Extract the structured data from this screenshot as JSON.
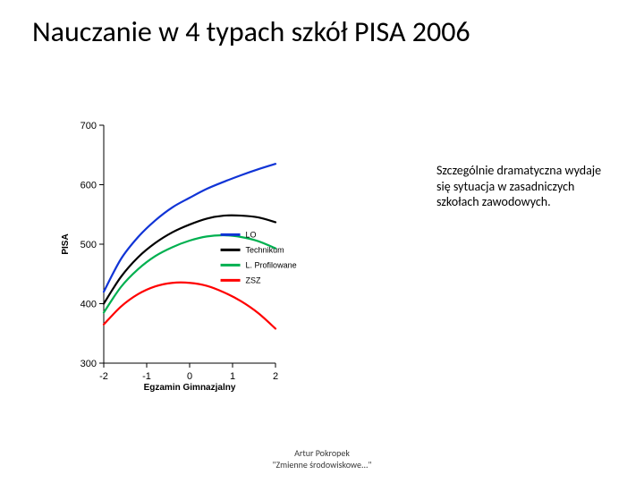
{
  "title": "Nauczanie w 4 typach szkół  PISA 2006",
  "note": "Szczególnie dramatyczna wydaje się sytuacja w zasadniczych szkołach zawodowych.",
  "footer_line1": "Artur Pokropek",
  "footer_line2": "\"Zmienne środowiskowe...\"",
  "chart": {
    "type": "line",
    "background_color": "#ffffff",
    "axis_color": "#000000",
    "xlabel": "Egzamin Gimnazjalny",
    "ylabel": "PISA",
    "label_fontsize": 10,
    "tick_fontsize": 11,
    "xlim": [
      -2,
      2
    ],
    "ylim": [
      300,
      700
    ],
    "xticks": [
      -2,
      -1,
      0,
      1,
      2
    ],
    "yticks": [
      300,
      400,
      500,
      600,
      700
    ],
    "tick_len": 5,
    "line_width": 2.2,
    "legend": {
      "x": 0.68,
      "y_top": 0.46,
      "swatch_width": 22,
      "fontsize": 9,
      "items": [
        {
          "label": "LO",
          "color": "#1034d6"
        },
        {
          "label": "Technikum",
          "color": "#000000"
        },
        {
          "label": "L. Profilowane",
          "color": "#00b050"
        },
        {
          "label": "ZSZ",
          "color": "#ff0000"
        }
      ]
    },
    "series": [
      {
        "name": "LO",
        "color": "#1034d6",
        "points": [
          [
            -2,
            420
          ],
          [
            -1.6,
            475
          ],
          [
            -1.2,
            512
          ],
          [
            -0.8,
            540
          ],
          [
            -0.4,
            562
          ],
          [
            0,
            578
          ],
          [
            0.4,
            593
          ],
          [
            0.8,
            605
          ],
          [
            1.2,
            616
          ],
          [
            1.6,
            626
          ],
          [
            2,
            635
          ]
        ]
      },
      {
        "name": "Technikum",
        "color": "#000000",
        "points": [
          [
            -2,
            400
          ],
          [
            -1.6,
            445
          ],
          [
            -1.2,
            478
          ],
          [
            -0.8,
            502
          ],
          [
            -0.4,
            520
          ],
          [
            0,
            533
          ],
          [
            0.4,
            543
          ],
          [
            0.8,
            548
          ],
          [
            1.2,
            548
          ],
          [
            1.6,
            545
          ],
          [
            2,
            537
          ]
        ]
      },
      {
        "name": "L. Profilowane",
        "color": "#00b050",
        "points": [
          [
            -2,
            385
          ],
          [
            -1.6,
            428
          ],
          [
            -1.2,
            458
          ],
          [
            -0.8,
            480
          ],
          [
            -0.4,
            495
          ],
          [
            0,
            506
          ],
          [
            0.4,
            513
          ],
          [
            0.8,
            515
          ],
          [
            1.2,
            512
          ],
          [
            1.6,
            505
          ],
          [
            2,
            493
          ]
        ]
      },
      {
        "name": "ZSZ",
        "color": "#ff0000",
        "points": [
          [
            -2,
            365
          ],
          [
            -1.6,
            395
          ],
          [
            -1.2,
            416
          ],
          [
            -0.8,
            429
          ],
          [
            -0.4,
            435
          ],
          [
            0,
            435
          ],
          [
            0.4,
            430
          ],
          [
            0.8,
            419
          ],
          [
            1.2,
            404
          ],
          [
            1.6,
            384
          ],
          [
            2,
            358
          ]
        ]
      }
    ]
  }
}
